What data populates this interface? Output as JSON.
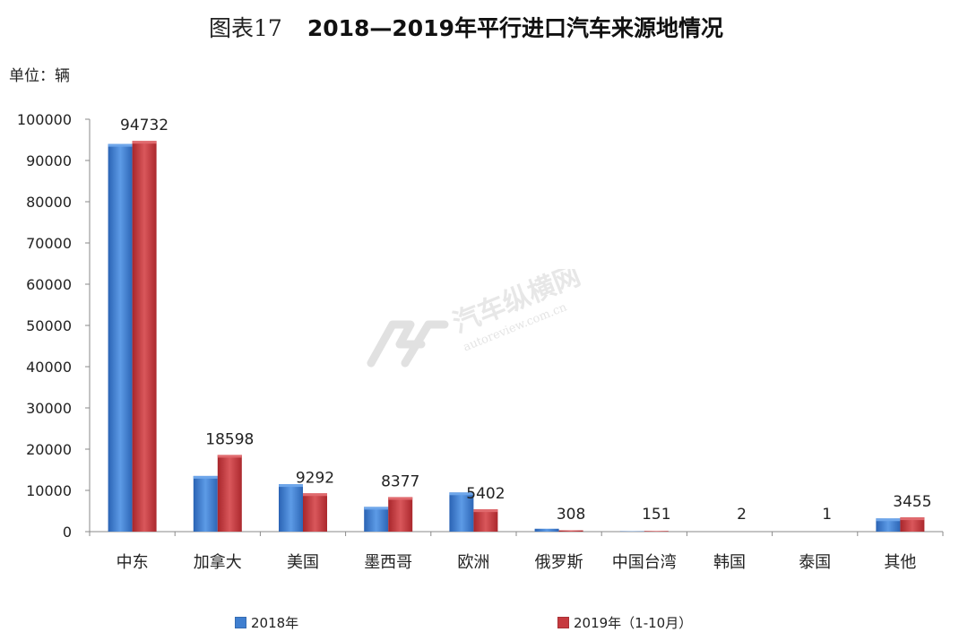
{
  "title": {
    "prefix": "图表17",
    "main": "2018—2019年平行进口汽车来源地情况"
  },
  "unit_label": "单位：辆",
  "legend": {
    "series_2018": "2018年",
    "series_2019": "2019年（1-10月）"
  },
  "watermark": {
    "brand": "汽车纵横网",
    "url": "autoreview.com.cn"
  },
  "colors": {
    "series_2018": "#3f7fd0",
    "series_2019": "#c63a3f"
  },
  "chart_data": {
    "type": "bar",
    "categories": [
      "中东",
      "加拿大",
      "美国",
      "墨西哥",
      "欧洲",
      "俄罗斯",
      "中国台湾",
      "韩国",
      "泰国",
      "其他"
    ],
    "series": [
      {
        "name": "2018年",
        "values": [
          94000,
          13500,
          11500,
          6000,
          9500,
          700,
          80,
          0,
          0,
          3200
        ]
      },
      {
        "name": "2019年（1-10月）",
        "values": [
          94732,
          18598,
          9292,
          8377,
          5402,
          308,
          151,
          2,
          1,
          3455
        ]
      }
    ],
    "data_labels_series": 1,
    "y_ticks": [
      "100000",
      "90000",
      "80000",
      "70000",
      "60000",
      "50000",
      "40000",
      "30000",
      "20000",
      "10000",
      "0"
    ],
    "ylim": [
      0,
      100000
    ],
    "grid": false,
    "legend_position": "bottom"
  }
}
